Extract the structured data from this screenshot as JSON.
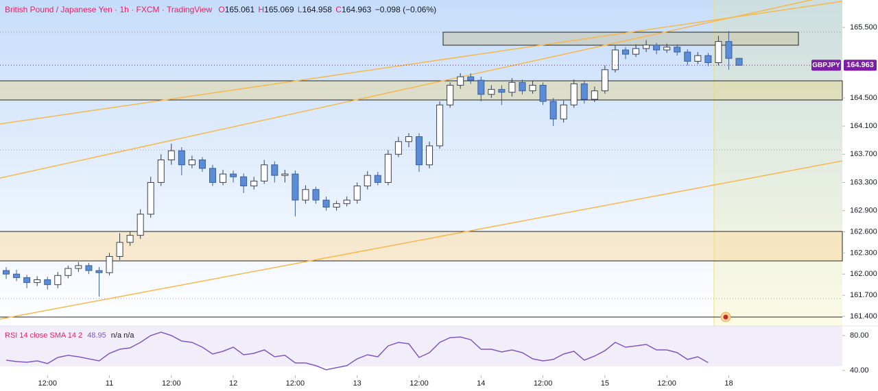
{
  "chart_data": [
    {
      "type": "candlestick",
      "title_parts": [
        "British Pound / Japanese Yen",
        "1h",
        "FXCM",
        "TradingView"
      ],
      "title_separator": "·",
      "ohlc_labels": [
        "O",
        "H",
        "L",
        "C"
      ],
      "change": "−0.098",
      "change_pct": "(−0.06%)",
      "xlim": [
        -0.2,
        163
      ],
      "ylim": [
        161.264,
        165.889
      ],
      "xticks": [
        {
          "value": 9,
          "label": "12:00"
        },
        {
          "value": 21,
          "label": "11"
        },
        {
          "value": 33,
          "label": "12:00"
        },
        {
          "value": 45,
          "label": "12"
        },
        {
          "value": 57,
          "label": "12:00"
        },
        {
          "value": 69,
          "label": "13"
        },
        {
          "value": 81,
          "label": "12:00"
        },
        {
          "value": 93,
          "label": "14"
        },
        {
          "value": 105,
          "label": "12:00"
        },
        {
          "value": 117,
          "label": "15"
        },
        {
          "value": 129,
          "label": "12:00"
        },
        {
          "value": 141,
          "label": "18"
        }
      ],
      "yticks": [
        {
          "value": 165.5,
          "label": "165.500"
        },
        {
          "value": 164.5,
          "label": "164.500"
        },
        {
          "value": 164.1,
          "label": "164.100"
        },
        {
          "value": 163.7,
          "label": "163.700"
        },
        {
          "value": 163.3,
          "label": "163.300"
        },
        {
          "value": 162.9,
          "label": "162.900"
        },
        {
          "value": 162.6,
          "label": "162.600"
        },
        {
          "value": 162.3,
          "label": "162.300"
        },
        {
          "value": 162.0,
          "label": "162.000"
        },
        {
          "value": 161.7,
          "label": "161.700"
        },
        {
          "value": 161.4,
          "label": "161.400"
        }
      ],
      "up_color": "#ffffff",
      "down_color": "#5b8dd6",
      "tag_color": "#7b1fa2",
      "x": [
        1,
        3,
        5,
        7,
        9,
        11,
        13,
        15,
        17,
        19,
        21,
        23,
        25,
        27,
        29,
        31,
        33,
        35,
        37,
        39,
        41,
        43,
        45,
        47,
        49,
        51,
        53,
        55,
        57,
        59,
        61,
        63,
        65,
        67,
        69,
        71,
        73,
        75,
        77,
        79,
        81,
        83,
        85,
        87,
        89,
        91,
        93,
        95,
        97,
        99,
        101,
        103,
        105,
        107,
        109,
        111,
        113,
        115,
        117,
        119,
        121,
        123,
        125,
        127,
        129,
        131,
        133,
        135,
        137,
        139,
        141,
        143
      ],
      "series": [
        {
          "name": "GBPJPY",
          "values": [
            [
              162.05,
              162.1,
              161.93,
              162.0
            ],
            [
              162.0,
              162.06,
              161.9,
              161.95
            ],
            [
              161.95,
              161.99,
              161.8,
              161.88
            ],
            [
              161.88,
              161.97,
              161.83,
              161.92
            ],
            [
              161.92,
              161.96,
              161.78,
              161.85
            ],
            [
              161.85,
              162.03,
              161.8,
              161.98
            ],
            [
              161.98,
              162.12,
              161.94,
              162.08
            ],
            [
              162.08,
              162.17,
              162.03,
              162.12
            ],
            [
              162.12,
              162.16,
              162.0,
              162.05
            ],
            [
              162.05,
              162.1,
              161.68,
              162.02
            ],
            [
              162.02,
              162.3,
              161.98,
              162.25
            ],
            [
              162.25,
              162.58,
              162.2,
              162.45
            ],
            [
              162.45,
              162.6,
              162.4,
              162.55
            ],
            [
              162.55,
              162.92,
              162.5,
              162.85
            ],
            [
              162.85,
              163.38,
              162.8,
              163.3
            ],
            [
              163.3,
              163.7,
              163.25,
              163.62
            ],
            [
              163.62,
              163.85,
              163.55,
              163.75
            ],
            [
              163.75,
              163.8,
              163.4,
              163.55
            ],
            [
              163.55,
              163.68,
              163.5,
              163.62
            ],
            [
              163.62,
              163.66,
              163.45,
              163.5
            ],
            [
              163.5,
              163.55,
              163.25,
              163.3
            ],
            [
              163.3,
              163.48,
              163.26,
              163.42
            ],
            [
              163.42,
              163.47,
              163.3,
              163.38
            ],
            [
              163.38,
              163.43,
              163.15,
              163.25
            ],
            [
              163.25,
              163.38,
              163.2,
              163.32
            ],
            [
              163.32,
              163.62,
              163.28,
              163.55
            ],
            [
              163.55,
              163.6,
              163.3,
              163.4
            ],
            [
              163.4,
              163.48,
              163.3,
              163.42
            ],
            [
              163.42,
              163.47,
              162.82,
              163.05
            ],
            [
              163.05,
              163.26,
              163.0,
              163.2
            ],
            [
              163.2,
              163.24,
              163.0,
              163.05
            ],
            [
              163.05,
              163.1,
              162.9,
              162.95
            ],
            [
              162.95,
              163.04,
              162.9,
              163.0
            ],
            [
              163.0,
              163.1,
              162.96,
              163.05
            ],
            [
              163.05,
              163.3,
              163.0,
              163.25
            ],
            [
              163.25,
              163.46,
              163.2,
              163.4
            ],
            [
              163.4,
              163.45,
              163.26,
              163.3
            ],
            [
              163.3,
              163.76,
              163.26,
              163.7
            ],
            [
              163.7,
              163.95,
              163.66,
              163.88
            ],
            [
              163.88,
              164.0,
              163.8,
              163.95
            ],
            [
              163.95,
              164.0,
              163.45,
              163.55
            ],
            [
              163.55,
              163.88,
              163.5,
              163.82
            ],
            [
              163.82,
              164.45,
              163.78,
              164.4
            ],
            [
              164.4,
              164.72,
              164.36,
              164.68
            ],
            [
              164.68,
              164.85,
              164.63,
              164.8
            ],
            [
              164.8,
              164.85,
              164.7,
              164.75
            ],
            [
              164.75,
              164.8,
              164.45,
              164.55
            ],
            [
              164.55,
              164.68,
              164.5,
              164.62
            ],
            [
              164.62,
              164.68,
              164.4,
              164.58
            ],
            [
              164.58,
              164.78,
              164.52,
              164.72
            ],
            [
              164.72,
              164.76,
              164.55,
              164.6
            ],
            [
              164.6,
              164.74,
              164.56,
              164.68
            ],
            [
              164.68,
              164.72,
              164.4,
              164.45
            ],
            [
              164.45,
              164.5,
              164.1,
              164.2
            ],
            [
              164.2,
              164.46,
              164.15,
              164.4
            ],
            [
              164.4,
              164.76,
              164.36,
              164.7
            ],
            [
              164.7,
              164.74,
              164.42,
              164.48
            ],
            [
              164.48,
              164.66,
              164.44,
              164.6
            ],
            [
              164.6,
              164.96,
              164.56,
              164.9
            ],
            [
              164.9,
              165.24,
              164.86,
              165.18
            ],
            [
              165.18,
              165.22,
              165.05,
              165.12
            ],
            [
              165.12,
              165.26,
              165.08,
              165.2
            ],
            [
              165.2,
              165.32,
              165.15,
              165.25
            ],
            [
              165.25,
              165.28,
              165.12,
              165.18
            ],
            [
              165.18,
              165.27,
              165.14,
              165.22
            ],
            [
              165.22,
              165.26,
              165.1,
              165.15
            ],
            [
              165.15,
              165.19,
              164.96,
              165.02
            ],
            [
              165.02,
              165.15,
              164.98,
              165.1
            ],
            [
              165.1,
              165.14,
              164.95,
              165.0
            ],
            [
              165.0,
              165.38,
              164.96,
              165.3
            ],
            [
              165.3,
              165.45,
              164.9,
              165.061
            ],
            [
              165.061,
              165.069,
              164.958,
              164.963
            ]
          ]
        }
      ]
    },
    {
      "type": "line",
      "title": "RSI 14 close SMA 14 2",
      "indicator_values": [
        "n/a",
        "n/a"
      ],
      "ylim": [
        34.5,
        91
      ],
      "yticks": [
        {
          "value": 80,
          "label": "80.00"
        },
        {
          "value": 40,
          "label": "40.00"
        }
      ],
      "series": [
        {
          "name": "RSI",
          "color": "#7e57c2",
          "values": [
            51.8,
            50.2,
            49.4,
            51.0,
            47.9,
            54.9,
            57.3,
            55.7,
            53.3,
            51.0,
            59.6,
            64.3,
            65.9,
            72.2,
            80.0,
            83.9,
            80.0,
            73.7,
            72.2,
            66.7,
            58.8,
            62.0,
            66.7,
            58.0,
            59.6,
            63.5,
            55.7,
            57.3,
            48.6,
            48.6,
            45.5,
            40.8,
            43.2,
            45.5,
            53.3,
            58.0,
            55.7,
            68.2,
            72.2,
            70.6,
            54.9,
            60.4,
            72.2,
            77.6,
            78.4,
            75.3,
            64.3,
            64.3,
            61.2,
            63.5,
            60.4,
            53.3,
            51.0,
            52.6,
            58.8,
            62.0,
            51.8,
            56.5,
            62.7,
            72.2,
            66.7,
            68.2,
            69.8,
            63.5,
            63.5,
            60.4,
            52.6,
            55.7,
            48.95,
            null,
            null,
            null
          ]
        }
      ]
    }
  ]
}
